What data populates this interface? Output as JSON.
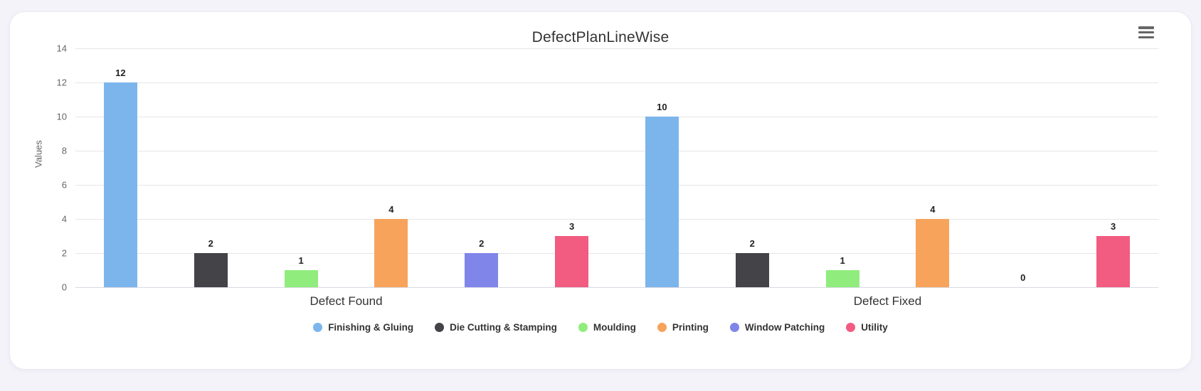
{
  "page": {
    "background_color": "#f4f3fa",
    "card_background_color": "#ffffff"
  },
  "header": {
    "menu_icon": "hamburger-menu-icon"
  },
  "chart_data": {
    "type": "bar",
    "title": "DefectPlanLineWise",
    "categories": [
      "Defect Found",
      "Defect Fixed"
    ],
    "series": [
      {
        "name": "Finishing & Gluing",
        "color": "#7cb5ec",
        "values": [
          12,
          10
        ]
      },
      {
        "name": "Die Cutting & Stamping",
        "color": "#434348",
        "values": [
          2,
          2
        ]
      },
      {
        "name": "Moulding",
        "color": "#90ed7d",
        "values": [
          1,
          1
        ]
      },
      {
        "name": "Printing",
        "color": "#f7a35c",
        "values": [
          4,
          4
        ]
      },
      {
        "name": "Window Patching",
        "color": "#8085e9",
        "values": [
          2,
          0
        ]
      },
      {
        "name": "Utility",
        "color": "#f15c80",
        "values": [
          3,
          3
        ]
      }
    ],
    "xlabel": "",
    "ylabel": "Values",
    "ylim": [
      0,
      14
    ],
    "ytick_step": 2,
    "grid": true,
    "legend_position": "bottom",
    "data_labels": true
  }
}
